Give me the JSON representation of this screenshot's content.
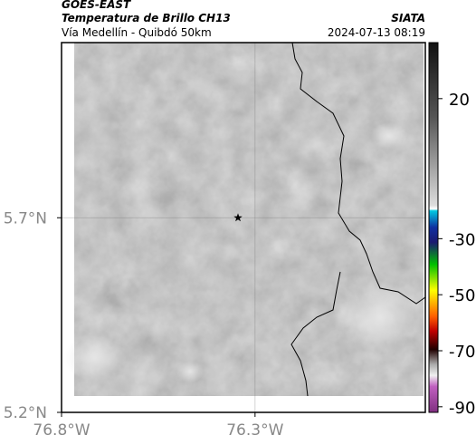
{
  "header": {
    "source": "GOES-EAST",
    "title": "Temperatura de Brillo CH13",
    "org": "SIATA",
    "subtitle": "Vía Medellín - Quibdó 50km",
    "datetime": "2024-07-13 08:19"
  },
  "map": {
    "xlim": [
      -76.8,
      -75.86
    ],
    "ylim": [
      5.2,
      6.15
    ],
    "xticks": [
      {
        "value": -76.8,
        "label": "76.8°W"
      },
      {
        "value": -76.3,
        "label": "76.3°W"
      }
    ],
    "yticks": [
      {
        "value": 5.7,
        "label": "5.7°N"
      },
      {
        "value": 5.2,
        "label": "5.2°N"
      }
    ],
    "grid": true,
    "marker": {
      "lon": -76.344,
      "lat": 5.7
    }
  },
  "colorbar": {
    "lim": [
      -92,
      40
    ],
    "ticks": [
      20,
      -30,
      -50,
      -70,
      -90
    ]
  }
}
